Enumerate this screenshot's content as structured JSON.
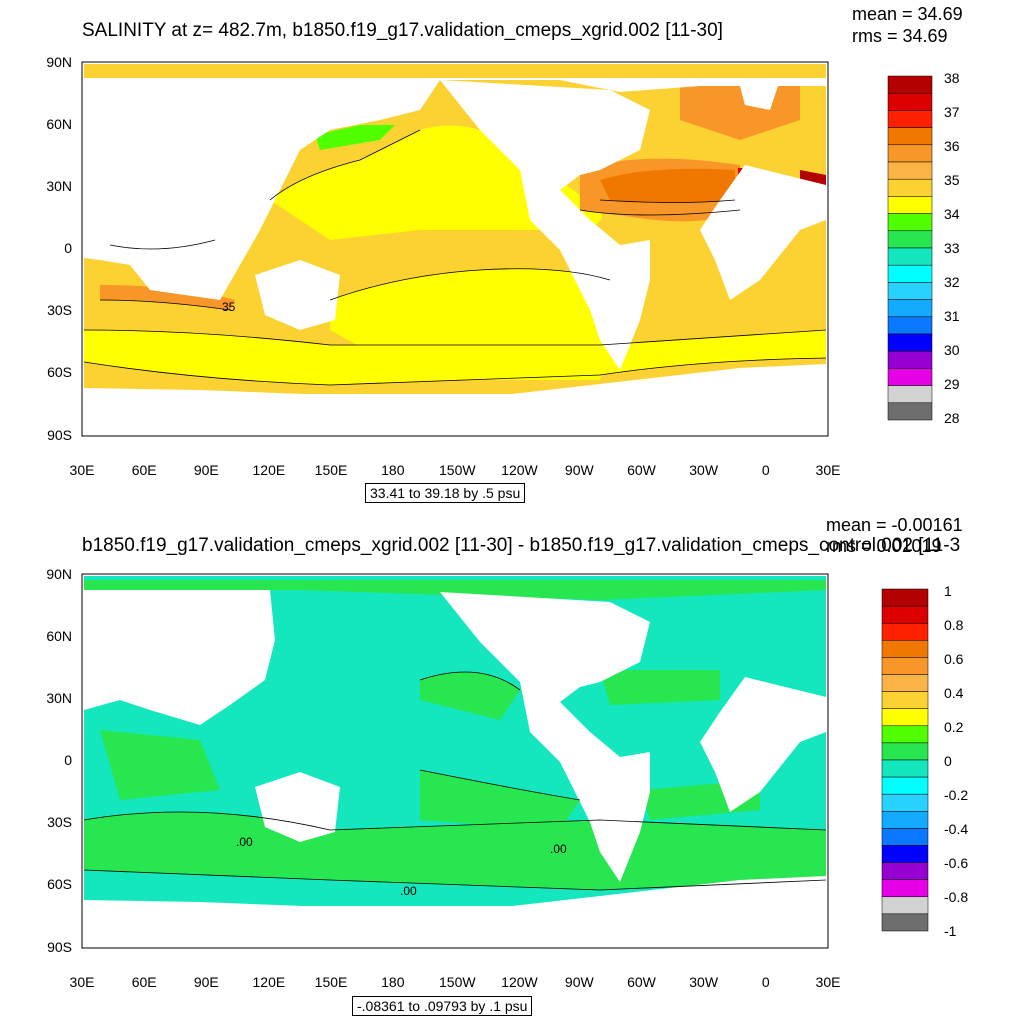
{
  "panels": [
    {
      "title": "SALINITY at z= 482.7m, b1850.f19_g17.validation_cmeps_xgrid.002 [11-30]",
      "mean": "mean = 34.69",
      "rms": "rms = 34.69",
      "range": "33.41 to 39.18 by .5 psu",
      "contour_label": "35",
      "colorbar_labels": [
        "38",
        "37",
        "36",
        "35",
        "34",
        "33",
        "32",
        "31",
        "30",
        "29",
        "28"
      ],
      "colorbar_colors": [
        "#b40000",
        "#dc0000",
        "#ff2000",
        "#f07800",
        "#f89628",
        "#fcb446",
        "#fcd232",
        "#ffff00",
        "#50ff00",
        "#28e650",
        "#14e6be",
        "#00ffff",
        "#28d2ff",
        "#14aaff",
        "#0a78ff",
        "#0000ff",
        "#9600d2",
        "#e600e6",
        "#d2d2d2",
        "#6e6e6e"
      ]
    },
    {
      "title": "b1850.f19_g17.validation_cmeps_xgrid.002 [11-30] - b1850.f19_g17.validation_cmeps_control.002 [11-3",
      "mean": "mean = -0.00161",
      "rms": "rms = 0.01019",
      "range": "-.08361 to .09793 by .1 psu",
      "contour_label": ".00",
      "colorbar_labels": [
        "1",
        "0.8",
        "0.6",
        "0.4",
        "0.2",
        "0",
        "-0.2",
        "-0.4",
        "-0.6",
        "-0.8",
        "-1"
      ],
      "colorbar_colors": [
        "#b40000",
        "#dc0000",
        "#ff2000",
        "#f07800",
        "#f89628",
        "#fcb446",
        "#fcd232",
        "#ffff00",
        "#50ff00",
        "#28e650",
        "#14e6be",
        "#00ffff",
        "#28d2ff",
        "#14aaff",
        "#0a78ff",
        "#0000ff",
        "#9600d2",
        "#e600e6",
        "#d2d2d2",
        "#6e6e6e"
      ]
    }
  ],
  "lat_labels": [
    "90N",
    "60N",
    "30N",
    "0",
    "30S",
    "60S",
    "90S"
  ],
  "lon_labels": [
    "30E",
    "60E",
    "90E",
    "120E",
    "150E",
    "180",
    "150W",
    "120W",
    "90W",
    "60W",
    "30W",
    "0",
    "30E"
  ]
}
